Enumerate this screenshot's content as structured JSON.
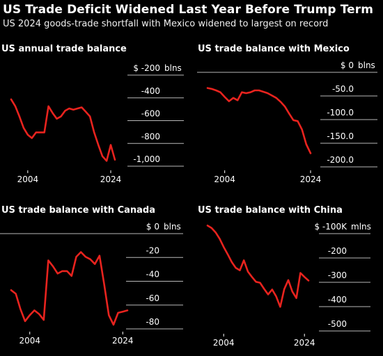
{
  "header": {
    "title": "US Trade Deficit Widened Last Year Before Trump Term",
    "subtitle": "US 2024 goods-trade shortfall with Mexico widened to largest on record"
  },
  "colors": {
    "line": "#e8231e",
    "rule": "#b8b8b8",
    "background": "#000000"
  },
  "chart_data": [
    {
      "type": "line",
      "title": "US annual trade balance",
      "unit": "blns",
      "ylim": [
        -1050,
        -150
      ],
      "y_ticks": [
        {
          "value": -200,
          "label": "$ -200"
        },
        {
          "value": -400,
          "label": "-400"
        },
        {
          "value": -600,
          "label": "-600"
        },
        {
          "value": -800,
          "label": "-800"
        },
        {
          "value": -1000,
          "label": "-1,000"
        }
      ],
      "x_ticks": [
        2004,
        2024
      ],
      "x": [
        2000,
        2001,
        2002,
        2003,
        2004,
        2005,
        2006,
        2007,
        2008,
        2009,
        2010,
        2011,
        2012,
        2013,
        2014,
        2015,
        2016,
        2017,
        2018,
        2019,
        2020,
        2021,
        2022,
        2023,
        2024,
        2025
      ],
      "series": [
        {
          "values": [
            -450,
            -510,
            -600,
            -700,
            -760,
            -790,
            -740,
            -740,
            -740,
            -510,
            -570,
            -620,
            -600,
            -550,
            -530,
            -540,
            -530,
            -520,
            -560,
            -600,
            -740,
            -850,
            -950,
            -990,
            -850,
            -980
          ]
        }
      ]
    },
    {
      "type": "line",
      "title": "US trade balance with Mexico",
      "unit": "blns",
      "ylim": [
        -215,
        5
      ],
      "y_ticks": [
        {
          "value": 0,
          "label": "$ 0"
        },
        {
          "value": -50,
          "label": "-50.0"
        },
        {
          "value": -100,
          "label": "-100.0"
        },
        {
          "value": -150,
          "label": "-150.0"
        },
        {
          "value": -200,
          "label": "-200.0"
        }
      ],
      "x_ticks": [
        2004,
        2024
      ],
      "x": [
        2000,
        2001,
        2002,
        2003,
        2004,
        2005,
        2006,
        2007,
        2008,
        2009,
        2010,
        2011,
        2012,
        2013,
        2014,
        2015,
        2016,
        2017,
        2018,
        2019,
        2020,
        2021,
        2022,
        2023,
        2024
      ],
      "series": [
        {
          "values": [
            -42,
            -44,
            -47,
            -51,
            -61,
            -70,
            -63,
            -68,
            -51,
            -53,
            -51,
            -47,
            -47,
            -50,
            -53,
            -58,
            -63,
            -71,
            -81,
            -96,
            -110,
            -112,
            -130,
            -161,
            -180
          ]
        }
      ]
    },
    {
      "type": "line",
      "title": "US trade balance with Canada",
      "unit": "blns",
      "ylim": [
        -92,
        5
      ],
      "y_ticks": [
        {
          "value": 0,
          "label": "$ 0"
        },
        {
          "value": -20,
          "label": "-20"
        },
        {
          "value": -40,
          "label": "-40"
        },
        {
          "value": -60,
          "label": "-60"
        },
        {
          "value": -80,
          "label": "-80"
        }
      ],
      "x_ticks": [
        2004,
        2024
      ],
      "x": [
        2000,
        2001,
        2002,
        2003,
        2004,
        2005,
        2006,
        2007,
        2008,
        2009,
        2010,
        2011,
        2012,
        2013,
        2014,
        2015,
        2016,
        2017,
        2018,
        2019,
        2020,
        2021,
        2022,
        2023,
        2024,
        2025
      ],
      "series": [
        {
          "values": [
            -51,
            -54,
            -67,
            -77,
            -72,
            -68,
            -71,
            -76,
            -26,
            -31,
            -37,
            -35,
            -35,
            -39,
            -23,
            -19,
            -23,
            -25,
            -29,
            -22,
            -46,
            -72,
            -80,
            -70,
            -69,
            -68
          ]
        }
      ]
    },
    {
      "type": "line",
      "title": "US trade balance with China",
      "unit": "mlns",
      "ylim": [
        -545,
        -50
      ],
      "y_ticks": [
        {
          "value": -100,
          "label": "$ -100K"
        },
        {
          "value": -200,
          "label": "-200"
        },
        {
          "value": -300,
          "label": "-300"
        },
        {
          "value": -400,
          "label": "-400"
        },
        {
          "value": -500,
          "label": "-500"
        }
      ],
      "x_ticks": [
        2004,
        2024
      ],
      "x": [
        2000,
        2001,
        2002,
        2003,
        2004,
        2005,
        2006,
        2007,
        2008,
        2009,
        2010,
        2011,
        2012,
        2013,
        2014,
        2015,
        2016,
        2017,
        2018,
        2019,
        2020,
        2021,
        2022,
        2023,
        2024,
        2025
      ],
      "series": [
        {
          "values": [
            -84,
            -94,
            -112,
            -138,
            -172,
            -202,
            -234,
            -258,
            -268,
            -227,
            -273,
            -295,
            -315,
            -319,
            -344,
            -367,
            -347,
            -375,
            -418,
            -345,
            -308,
            -355,
            -382,
            -279,
            -295,
            -310
          ]
        }
      ]
    }
  ]
}
